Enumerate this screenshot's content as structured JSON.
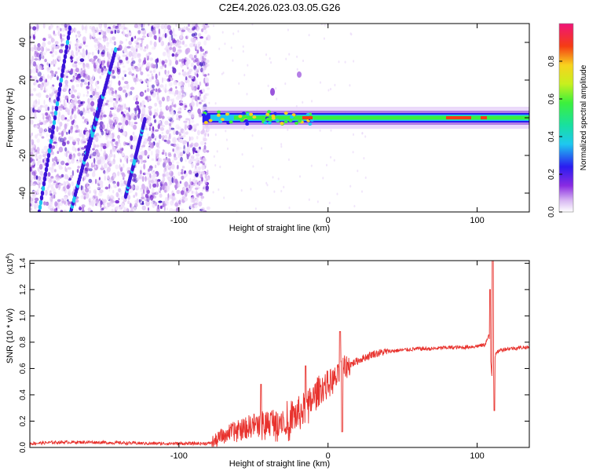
{
  "title": "C2E4.2026.023.03.05.G26",
  "chart_data": [
    {
      "type": "heatmap",
      "name": "spectrogram",
      "xlabel": "Height of straight line (km)",
      "ylabel": "Frequency (Hz)",
      "xlim": [
        -200,
        135
      ],
      "ylim": [
        -50,
        50
      ],
      "xticks": [
        -100,
        0,
        100
      ],
      "xtick_labels": [
        "-100",
        "0",
        "100"
      ],
      "yticks": [
        -40,
        -20,
        0,
        20,
        40
      ],
      "ytick_labels": [
        "-40",
        "-20",
        "0",
        "20",
        "40"
      ],
      "noise_region_end_km": -80,
      "carrier_frequency_hz": 0,
      "colorbar": {
        "label": "Normalized spectral amplitude",
        "range": [
          0,
          1
        ],
        "ticks": [
          0.0,
          0.2,
          0.4,
          0.6,
          0.8
        ],
        "tick_labels": [
          "0.0",
          "0.2",
          "0.4",
          "0.6",
          "0.8"
        ]
      }
    },
    {
      "type": "line",
      "name": "snr",
      "xlabel": "Height of straight line (km)",
      "ylabel": "SNR (10 * v/v)",
      "scale_label": "(x10",
      "scale_exponent": "4",
      "xlim": [
        -200,
        135
      ],
      "ylim": [
        0,
        1.42
      ],
      "xticks": [
        -100,
        0,
        100
      ],
      "xtick_labels": [
        "-100",
        "0",
        "100"
      ],
      "yticks": [
        0.0,
        0.2,
        0.4,
        0.6,
        0.8,
        1.0,
        1.2,
        1.4
      ],
      "ytick_labels": [
        "0.0",
        "0.2",
        "0.4",
        "0.6",
        "0.8",
        "1.0",
        "1.2",
        "1.4"
      ],
      "series": [
        {
          "name": "SNR",
          "color": "#e8322d",
          "x": [
            -200,
            -180,
            -160,
            -140,
            -120,
            -100,
            -90,
            -80,
            -75,
            -70,
            -60,
            -50,
            -40,
            -30,
            -20,
            -15,
            -10,
            -5,
            0,
            5,
            8,
            10,
            15,
            20,
            30,
            40,
            50,
            60,
            70,
            80,
            90,
            100,
            105,
            108,
            110,
            112,
            115,
            120,
            130,
            135
          ],
          "y": [
            0.03,
            0.04,
            0.04,
            0.035,
            0.03,
            0.03,
            0.03,
            0.03,
            0.05,
            0.1,
            0.13,
            0.17,
            0.19,
            0.22,
            0.25,
            0.3,
            0.37,
            0.45,
            0.48,
            0.52,
            0.55,
            0.6,
            0.63,
            0.66,
            0.71,
            0.73,
            0.74,
            0.75,
            0.75,
            0.76,
            0.76,
            0.77,
            0.78,
            0.85,
            0.52,
            0.7,
            0.74,
            0.75,
            0.76,
            0.76
          ]
        }
      ]
    }
  ]
}
